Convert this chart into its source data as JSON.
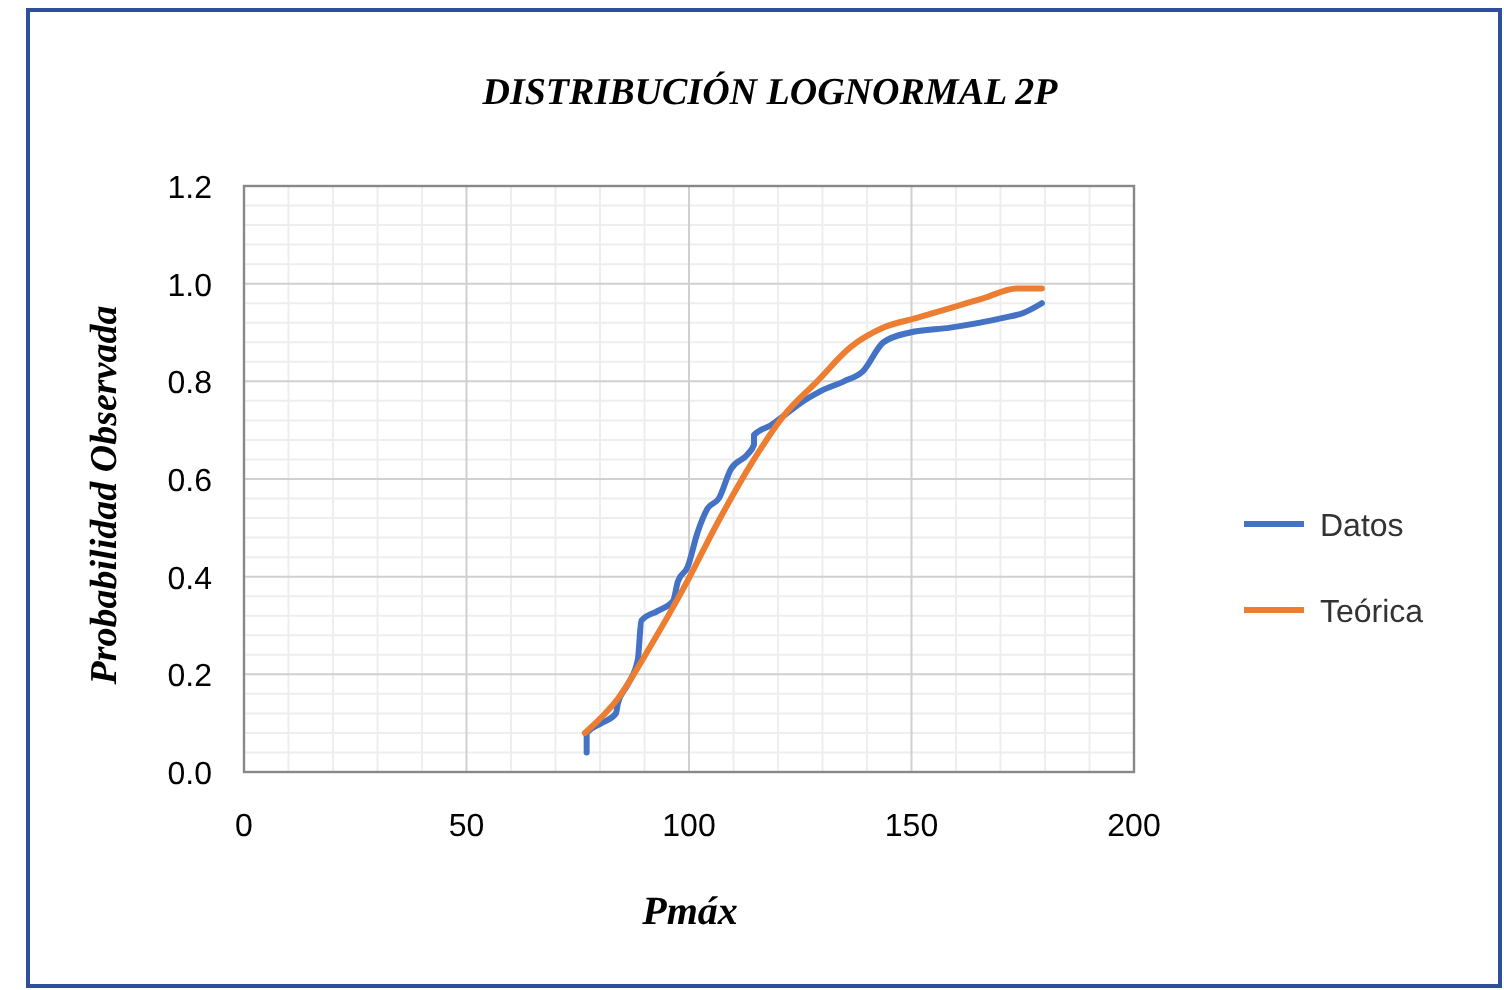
{
  "chart_data": {
    "type": "line",
    "title": "DISTRIBUCIÓN LOGNORMAL 2P",
    "xlabel": "Pmáx",
    "ylabel": "Probabilidad Observada",
    "xlim": [
      0,
      200
    ],
    "xticks": [
      0,
      50,
      100,
      150,
      200
    ],
    "ylim": [
      0,
      1.2
    ],
    "yticks": [
      {
        "value": 0,
        "label": "0.0"
      },
      {
        "value": 0.2,
        "label": "0.2"
      },
      {
        "value": 0.4,
        "label": "0.4"
      },
      {
        "value": 0.6,
        "label": "0.6"
      },
      {
        "value": 0.8,
        "label": "0.8"
      },
      {
        "value": 1,
        "label": "1.0"
      },
      {
        "value": 1.2,
        "label": "1.2"
      }
    ],
    "grid": true,
    "legend": "right",
    "marker": "none",
    "line_style": "solid",
    "series": [
      {
        "name": "Datos",
        "color": "#4472c4",
        "x": [
          77.0,
          77.0,
          80.3,
          83.6,
          84.0,
          86.3,
          88.5,
          89.3,
          93.0,
          96.4,
          97.5,
          99.7,
          101.9,
          104.2,
          106.7,
          109.4,
          113.1,
          114.6,
          114.6,
          118.4,
          122.8,
          125.8,
          129.6,
          134.8,
          139.0,
          143.7,
          149.7,
          158.7,
          170.6,
          175.1,
          179.3
        ],
        "values": [
          0.04,
          0.08,
          0.1,
          0.12,
          0.14,
          0.18,
          0.23,
          0.31,
          0.33,
          0.35,
          0.39,
          0.42,
          0.49,
          0.54,
          0.56,
          0.62,
          0.65,
          0.67,
          0.69,
          0.71,
          0.74,
          0.76,
          0.78,
          0.8,
          0.82,
          0.88,
          0.9,
          0.91,
          0.93,
          0.94,
          0.96
        ]
      },
      {
        "name": "Teórica",
        "color": "#ed7d31",
        "x": [
          76.6,
          84.0,
          91.5,
          99.0,
          106.4,
          113.9,
          121.3,
          128.8,
          136.3,
          143.7,
          151.2,
          158.7,
          166.1,
          173.6,
          179.3
        ],
        "values": [
          0.08,
          0.15,
          0.26,
          0.38,
          0.51,
          0.63,
          0.73,
          0.8,
          0.87,
          0.91,
          0.93,
          0.95,
          0.97,
          0.99,
          0.99
        ]
      }
    ]
  }
}
